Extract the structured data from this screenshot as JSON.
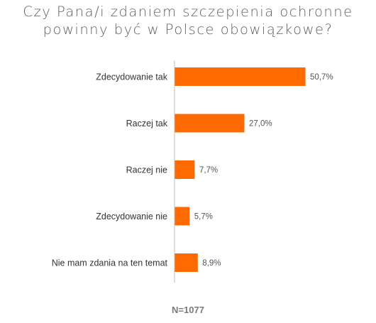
{
  "title": {
    "line1": "Czy Pana/i zdaniem szczepienia ochronne",
    "line2": "powinny być w Polsce obowiązkowe?"
  },
  "chart_data": {
    "type": "bar",
    "orientation": "horizontal",
    "title": "Czy Pana/i zdaniem szczepienia ochronne powinny być w Polsce obowiązkowe?",
    "categories": [
      "Zdecydowanie tak",
      "Raczej tak",
      "Raczej nie",
      "Zdecydowanie nie",
      "Nie mam zdania na ten temat"
    ],
    "values": [
      50.7,
      27.0,
      7.7,
      5.7,
      8.9
    ],
    "value_labels": [
      "50,7%",
      "27,0%",
      "7,7%",
      "5,7%",
      "8,9%"
    ],
    "unit": "%",
    "xlim": [
      0,
      100
    ],
    "grid": false,
    "legend": "none",
    "bar_color": "#ff6a00",
    "note": "N=1077"
  },
  "colors": {
    "bar": "#ff6a00",
    "axis": "#bdbdbd",
    "title": "#5f5f5f",
    "label": "#333333",
    "value": "#555555",
    "note": "#7a7a7a"
  }
}
